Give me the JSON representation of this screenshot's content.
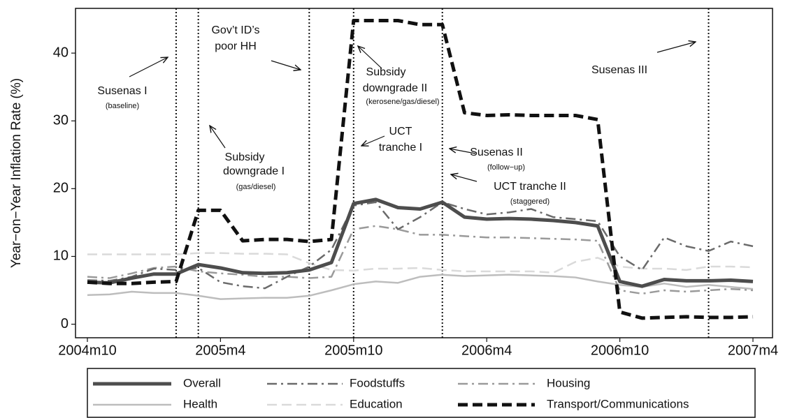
{
  "chart_data": {
    "type": "line",
    "y_label": "Year−on−Year Inflation Rate (%)",
    "categories": [
      "2004m10",
      null,
      null,
      null,
      null,
      null,
      "2005m4",
      null,
      null,
      null,
      null,
      null,
      "2005m10",
      null,
      null,
      null,
      null,
      null,
      "2006m4",
      null,
      null,
      null,
      null,
      null,
      "2006m10",
      null,
      null,
      null,
      null,
      null,
      "2007m4"
    ],
    "ylim": [
      -2,
      46.6
    ],
    "yticks": [
      0,
      10,
      20,
      30,
      40
    ],
    "vlines": [
      4,
      5,
      10,
      12,
      16,
      28
    ],
    "series": [
      {
        "name": "Overall",
        "color": "#4d4d4d",
        "dash": "solid",
        "width": 5,
        "values": [
          6.2,
          6.1,
          6.8,
          7.4,
          7.4,
          8.8,
          8.3,
          7.6,
          7.5,
          7.6,
          8,
          9.1,
          17.8,
          18.4,
          17.2,
          17,
          18,
          15.8,
          15.5,
          15.6,
          15.5,
          15.3,
          15,
          14.5,
          6.3,
          5.6,
          6.6,
          6.4,
          6.4,
          6.5,
          6.3
        ]
      },
      {
        "name": "Foodstuffs",
        "color": "#6a6a6a",
        "dash": "dashdot",
        "width": 2.5,
        "values": [
          6.5,
          6.4,
          7,
          8.2,
          8,
          8.3,
          6.2,
          5.6,
          5.3,
          7,
          8.5,
          11,
          17.5,
          18,
          14,
          15.8,
          18,
          17,
          16.2,
          16.5,
          17,
          15.8,
          15.5,
          15.2,
          10,
          8,
          12.8,
          11.5,
          10.8,
          12.2,
          11.5
        ]
      },
      {
        "name": "Housing",
        "color": "#9a9a9a",
        "dash": "dashdot",
        "width": 2.5,
        "values": [
          7,
          6.8,
          7.5,
          8.3,
          8.5,
          7.8,
          7.5,
          7.3,
          7,
          7,
          6.8,
          7,
          14,
          14.5,
          14,
          13.2,
          13.2,
          13,
          12.8,
          12.8,
          12.7,
          12.6,
          12.5,
          12.3,
          5,
          4.5,
          5,
          4.8,
          5,
          5.2,
          5
        ]
      },
      {
        "name": "Health",
        "color": "#bdbdbd",
        "dash": "solid",
        "width": 2.5,
        "values": [
          4.3,
          4.4,
          4.8,
          4.6,
          4.6,
          4.2,
          3.7,
          3.8,
          3.9,
          3.9,
          4.2,
          5,
          5.9,
          6.3,
          6.1,
          7,
          7.3,
          7.1,
          7.2,
          7.3,
          7.2,
          7.1,
          6.9,
          6.3,
          5.8,
          5.5,
          6,
          5.5,
          5.8,
          5.5,
          5.2
        ]
      },
      {
        "name": "Education",
        "color": "#dadada",
        "dash": "dash",
        "width": 2.5,
        "values": [
          10.3,
          10.3,
          10.3,
          10.3,
          10.3,
          10.5,
          10.5,
          10.4,
          10.4,
          10.3,
          9,
          8,
          7.9,
          8.2,
          8.2,
          8.3,
          8,
          7.8,
          7.8,
          7.8,
          7.8,
          7.6,
          9.2,
          9.8,
          8.5,
          8.2,
          8.2,
          8,
          8.5,
          8.5,
          8.4
        ]
      },
      {
        "name": "Transport/Communications",
        "color": "#111111",
        "dash": "dash",
        "width": 5,
        "values": [
          6.2,
          6,
          6,
          6.2,
          6.3,
          16.8,
          16.8,
          12.3,
          12.5,
          12.5,
          12.2,
          12.5,
          44.8,
          44.8,
          44.8,
          44.2,
          44.2,
          31.2,
          30.8,
          30.9,
          30.8,
          30.8,
          30.8,
          30.2,
          1.8,
          0.9,
          1,
          1.1,
          1,
          1,
          1.1
        ]
      }
    ],
    "annotations": [
      "Susenas I",
      "(baseline)",
      "Gov’t ID’s",
      "poor HH",
      "Subsidy",
      "downgrade I",
      "(gas/diesel)",
      "Subsidy",
      "downgrade II",
      "(kerosene/gas/diesel)",
      "UCT",
      "tranche I",
      "Susenas II",
      "(follow−up)",
      "UCT tranche II",
      "(staggered)",
      "Susenas III"
    ]
  }
}
